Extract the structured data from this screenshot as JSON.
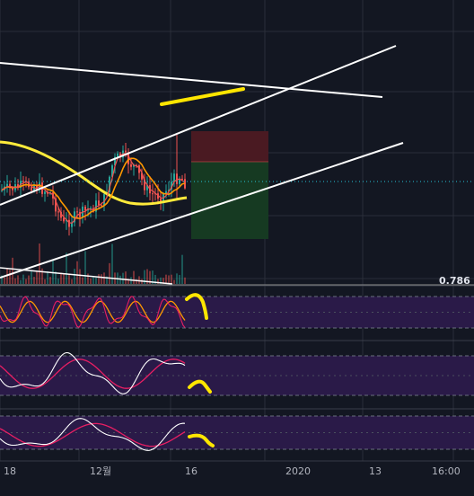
{
  "chart_data": {
    "type": "candlestick",
    "grid": true,
    "colors": {
      "background": "#131722",
      "grid": "#2a2e39",
      "up": "#26a69a",
      "down": "#ef5350",
      "ma_orange": "#ff9800",
      "ma_yellow": "#ffeb3b",
      "trend_white": "#ffffff",
      "highlight_yellow": "#ffe600",
      "oscillator_band": "#2a1a48",
      "osc_line_a": "#ffffff",
      "osc_line_b": "#e91e63",
      "osc_line_c": "#ff9800",
      "position_loss": "#4a1a22",
      "position_profit": "#163a22"
    },
    "x_ticks": [
      "18",
      "12월",
      "16",
      "2020",
      "13",
      "16:00"
    ],
    "fib_label": "0.786",
    "panels": [
      "price",
      "oscillator-1",
      "oscillator-2",
      "oscillator-3"
    ]
  }
}
